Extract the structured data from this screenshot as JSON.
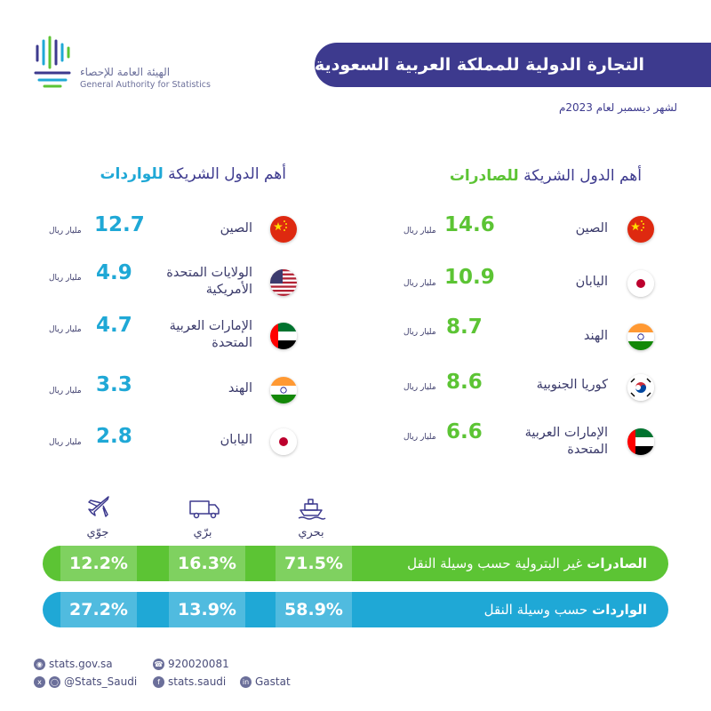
{
  "logo": {
    "arabic": "الهيئة العامة للإحصاء",
    "english": "General Authority for Statistics"
  },
  "title": "التجارة الدولية للمملكة العربية السعودية",
  "subtitle": "لشهر ديسمبر لعام 2023م",
  "exports": {
    "heading_prefix": "أهم الدول الشريكة",
    "heading_highlight": "للصادرات",
    "unit": "مليار ريال",
    "rows": [
      {
        "country": "الصين",
        "value": "14.6",
        "flag": "china-flag-icon"
      },
      {
        "country": "اليابان",
        "value": "10.9",
        "flag": "japan-flag-icon"
      },
      {
        "country": "الهند",
        "value": "8.7",
        "flag": "india-flag-icon"
      },
      {
        "country": "كوريا الجنوبية",
        "value": "8.6",
        "flag": "south-korea-flag-icon"
      },
      {
        "country_line1": "الإمارات العربية",
        "country_line2": "المتحدة",
        "value": "6.6",
        "flag": "uae-flag-icon"
      }
    ]
  },
  "imports": {
    "heading_prefix": "أهم الدول الشريكة",
    "heading_highlight": "للواردات",
    "unit": "مليار ريال",
    "rows": [
      {
        "country": "الصين",
        "value": "12.7",
        "flag": "china-flag-icon"
      },
      {
        "country_line1": "الولايات المتحدة",
        "country_line2": "الأمريكية",
        "value": "4.9",
        "flag": "usa-flag-icon"
      },
      {
        "country_line1": "الإمارات العربية",
        "country_line2": "المتحدة",
        "value": "4.7",
        "flag": "uae-flag-icon"
      },
      {
        "country": "الهند",
        "value": "3.3",
        "flag": "india-flag-icon"
      },
      {
        "country": "اليابان",
        "value": "2.8",
        "flag": "japan-flag-icon"
      }
    ]
  },
  "transport": {
    "sea": {
      "label": "بحري",
      "icon": "ship-icon"
    },
    "land": {
      "label": "برّي",
      "icon": "truck-icon"
    },
    "air": {
      "label": "جوّي",
      "icon": "airplane-icon"
    }
  },
  "bars": {
    "exports": {
      "bold": "الصادرات",
      "rest": "غير البترولية حسب وسيلة النقل",
      "sea": "71.5%",
      "land": "16.3%",
      "air": "12.2%",
      "color": "#5cc434"
    },
    "imports": {
      "bold": "الواردات",
      "rest": "حسب وسيلة النقل",
      "sea": "58.9%",
      "land": "13.9%",
      "air": "27.2%",
      "color": "#1fa8d6"
    }
  },
  "footer": {
    "website": "stats.gov.sa",
    "phone": "920020081",
    "social": "@Stats_Saudi",
    "facebook": "stats.saudi",
    "linkedin": "Gastat"
  },
  "colors": {
    "primary": "#3d3a8e",
    "export_green": "#5cc434",
    "import_blue": "#1fa8d6"
  }
}
